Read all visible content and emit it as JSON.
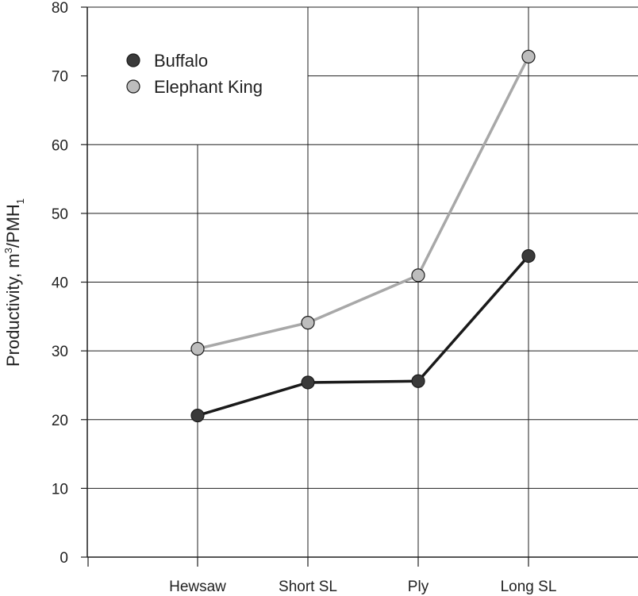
{
  "chart_data": {
    "type": "line",
    "title": "",
    "xlabel": "",
    "ylabel": {
      "base": "Productivity, m",
      "sup": "3",
      "mid": "/PMH",
      "sub": "1"
    },
    "categories": [
      "Hewsaw",
      "Short SL",
      "Ply",
      "Long SL"
    ],
    "ylim": [
      0,
      80
    ],
    "yticks": [
      0,
      10,
      20,
      30,
      40,
      50,
      60,
      70,
      80
    ],
    "grid": true,
    "legend_position": "top-left",
    "series": [
      {
        "name": "Buffalo",
        "values": [
          20.6,
          25.4,
          25.6,
          43.8
        ],
        "line_color": "#1a1a1a",
        "marker_color": "#3a3a3a"
      },
      {
        "name": "Elephant King",
        "values": [
          30.3,
          34.1,
          41.0,
          72.8
        ],
        "line_color": "#a8a8a8",
        "marker_color": "#bdbdbd"
      }
    ]
  }
}
